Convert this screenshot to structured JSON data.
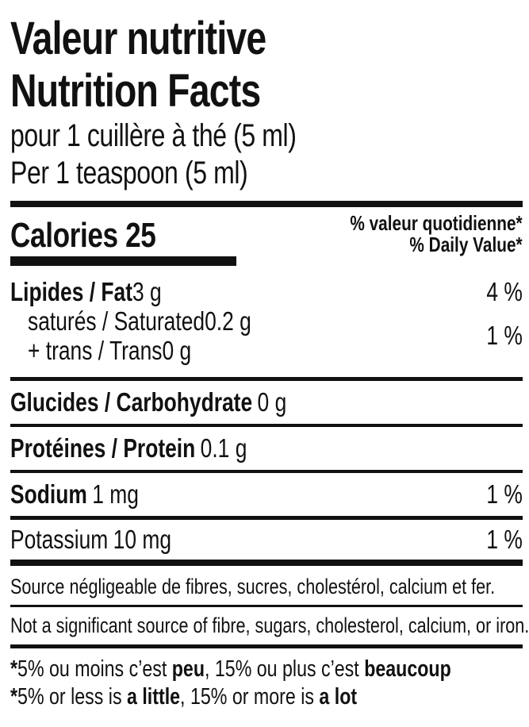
{
  "label": {
    "title_fr": "Valeur nutritive",
    "title_en": "Nutrition Facts",
    "serving_fr": "pour 1 cuillère à thé (5 ml)",
    "serving_en": "Per 1 teaspoon (5 ml)",
    "calories_label": "Calories",
    "calories_value": "25",
    "dv_header_fr": "% valeur quotidienne*",
    "dv_header_en": "% Daily Value*",
    "rows": {
      "fat": {
        "name": "Lipides / Fat",
        "amount": "3 g",
        "dv": "4 %"
      },
      "saturated": {
        "name": "saturés / Saturated",
        "amount": "0.2 g"
      },
      "trans": {
        "name": "+ trans / Trans",
        "amount": "0 g"
      },
      "sat_trans_dv": "1 %",
      "carbohydrate": {
        "name": "Glucides / Carbohydrate",
        "amount": "0 g"
      },
      "protein": {
        "name": "Protéines / Protein",
        "amount": "0.1 g"
      },
      "sodium": {
        "name": "Sodium",
        "amount": "1 mg",
        "dv": "1 %"
      },
      "potassium": {
        "name": "Potassium",
        "amount": "10 mg",
        "dv": "1 %"
      }
    },
    "insignificant_fr": "Source négligeable de fibres, sucres, cholestérol, calcium et fer.",
    "insignificant_en": "Not a significant source of fibre, sugars, cholesterol, calcium, or iron.",
    "footnote_fr": {
      "star": "*",
      "t1": "5% ou moins c’est ",
      "b1": "peu",
      "t2": ", 15% ou plus c’est ",
      "b2": "beaucoup"
    },
    "footnote_en": {
      "star": "*",
      "t1": "5% or less is ",
      "b1": "a little",
      "t2": ", 15% or more is ",
      "b2": "a lot"
    },
    "colors": {
      "ink": "#111111",
      "background": "#ffffff"
    }
  }
}
